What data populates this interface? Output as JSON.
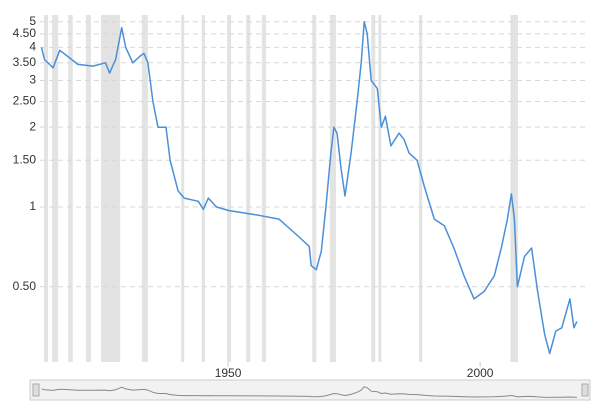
{
  "chart_data": {
    "type": "line",
    "x": [
      1913,
      1913.6,
      1915.3,
      1916.6,
      1918.2,
      1920.2,
      1923.2,
      1925.7,
      1926.5,
      1927.7,
      1928.9,
      1929.7,
      1931.1,
      1932.5,
      1933.3,
      1934.1,
      1935.1,
      1936.1,
      1937.7,
      1938.5,
      1940.1,
      1941.3,
      1944.1,
      1945.1,
      1946.1,
      1947.7,
      1950.1,
      1956.1,
      1960.1,
      1964.1,
      1966.1,
      1966.5,
      1967.5,
      1968.5,
      1969.4,
      1970.4,
      1971,
      1971.6,
      1972.4,
      1973.2,
      1974.4,
      1975.6,
      1976.4,
      1977,
      1977.6,
      1978.4,
      1979.6,
      1980.4,
      1981.2,
      1982.3,
      1983.9,
      1984.9,
      1985.9,
      1987.5,
      1988.9,
      1990.9,
      1992.9,
      1994.8,
      1996.8,
      1998.8,
      2000.8,
      2002.8,
      2004.2,
      2005.4,
      2006.2,
      2006.8,
      2007.4,
      2008.8,
      2010.2,
      2011.4,
      2012.8,
      2013.8,
      2015,
      2016.2,
      2017.8,
      2018.6,
      2019.2
    ],
    "series": [
      {
        "color": "#4a90d9",
        "values": [
          4.0,
          3.6,
          3.35,
          3.9,
          3.7,
          3.45,
          3.4,
          3.5,
          3.2,
          3.6,
          4.75,
          4.0,
          3.5,
          3.7,
          3.8,
          3.5,
          2.5,
          2.0,
          2.0,
          1.5,
          1.15,
          1.08,
          1.05,
          0.98,
          1.08,
          1.0,
          0.97,
          0.93,
          0.9,
          0.77,
          0.71,
          0.6,
          0.58,
          0.68,
          1.0,
          1.6,
          2.0,
          1.9,
          1.4,
          1.1,
          1.6,
          2.5,
          3.5,
          5.0,
          4.5,
          3.0,
          2.8,
          2.0,
          2.2,
          1.7,
          1.9,
          1.8,
          1.6,
          1.5,
          1.2,
          0.9,
          0.85,
          0.7,
          0.55,
          0.45,
          0.48,
          0.55,
          0.7,
          0.9,
          1.12,
          0.9,
          0.5,
          0.65,
          0.7,
          0.48,
          0.33,
          0.28,
          0.34,
          0.35,
          0.45,
          0.35,
          0.37
        ]
      }
    ],
    "recessions": [
      [
        1913.5,
        1914.3
      ],
      [
        1915.1,
        1916.3
      ],
      [
        1918.3,
        1919.2
      ],
      [
        1921.8,
        1922.8
      ],
      [
        1924.8,
        1928.6
      ],
      [
        1932.9,
        1934.1
      ],
      [
        1940.7,
        1941.3
      ],
      [
        1944.8,
        1945.4
      ],
      [
        1949.8,
        1950.6
      ],
      [
        1953.6,
        1954.4
      ],
      [
        1956.7,
        1957.5
      ],
      [
        1966.7,
        1967.5
      ],
      [
        1970.2,
        1971.4
      ],
      [
        1978.4,
        1979.2
      ],
      [
        1979.8,
        1980.4
      ],
      [
        1987.9,
        1988.5
      ],
      [
        2006,
        2007.5
      ]
    ],
    "recession_color": "#e3e3e3",
    "log_y": true,
    "grid": true,
    "xlim": [
      1912.7,
      2020.8
    ],
    "xticks": [
      1950,
      2000
    ],
    "ylim": [
      0.26,
      5.3
    ],
    "yticks": [
      {
        "value": 0.5,
        "label": "0.50"
      },
      1,
      {
        "value": 1.5,
        "label": "1.50"
      },
      2,
      {
        "value": 2.5,
        "label": "2.50"
      },
      3,
      {
        "value": 3.5,
        "label": "3.50"
      },
      4,
      {
        "value": 4.5,
        "label": "4.50"
      },
      5
    ]
  }
}
